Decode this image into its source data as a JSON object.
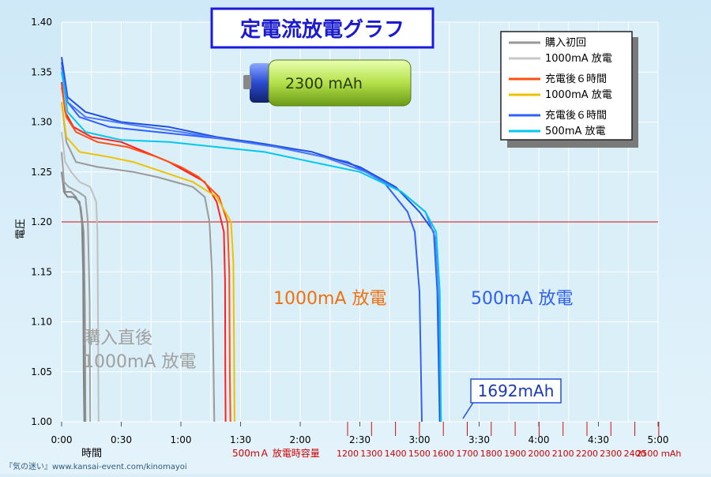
{
  "chart_data": {
    "type": "line",
    "title": "定電流放電グラフ",
    "xlabel": "時間",
    "ylabel": "電圧",
    "x_unit": "hours",
    "xlim": [
      0,
      5
    ],
    "ylim": [
      1.0,
      1.4
    ],
    "grid": true,
    "reference_line": 1.2,
    "x_ticks": [
      "0:00",
      "0:30",
      "1:00",
      "1:30",
      "2:00",
      "2:30",
      "3:00",
      "3:30",
      "4:00",
      "4:30",
      "5:00"
    ],
    "y_ticks": [
      "1.00",
      "1.05",
      "1.10",
      "1.15",
      "1.20",
      "1.25",
      "1.30",
      "1.35",
      "1.40"
    ],
    "capacity_axis": {
      "label": "500ｍＡ 放電時容量",
      "ticks": [
        "1200",
        "1300",
        "1400",
        "1500",
        "1600",
        "1700",
        "1800",
        "1900",
        "2000",
        "2100",
        "2200",
        "2300",
        "2400",
        "2500 ｍAh"
      ]
    },
    "legend": {
      "placement": "top-right",
      "groups": [
        {
          "lines": [
            "購入初回",
            "1000mA 放電"
          ],
          "colors": [
            "#999999",
            "#c8c8c8"
          ]
        },
        {
          "lines": [
            "充電後６時間",
            "1000mA 放電"
          ],
          "colors": [
            "#ff5010",
            "#f0c000"
          ]
        },
        {
          "lines": [
            "充電後６時間",
            "500mA 放電"
          ],
          "colors": [
            "#3060ff",
            "#00c8f0"
          ]
        }
      ]
    },
    "annotations": {
      "group_new": [
        "購入直後",
        "1000mA 放電"
      ],
      "group_1000": "1000mA 放電",
      "group_500": "500mA 放電",
      "callout": "1692mAh"
    },
    "battery_label": "2300 mAh",
    "series": [
      {
        "color": "#808080",
        "points": [
          [
            0,
            1.25
          ],
          [
            0.02,
            1.23
          ],
          [
            0.05,
            1.225
          ],
          [
            0.1,
            1.225
          ],
          [
            0.15,
            1.22
          ],
          [
            0.17,
            1.2
          ],
          [
            0.18,
            1.15
          ],
          [
            0.185,
            1.05
          ],
          [
            0.19,
            1.0
          ]
        ]
      },
      {
        "color": "#909090",
        "points": [
          [
            0,
            1.25
          ],
          [
            0.03,
            1.23
          ],
          [
            0.08,
            1.23
          ],
          [
            0.12,
            1.225
          ],
          [
            0.16,
            1.215
          ],
          [
            0.185,
            1.19
          ],
          [
            0.195,
            1.12
          ],
          [
            0.2,
            1.0
          ]
        ]
      },
      {
        "color": "#a0a0a0",
        "points": [
          [
            0,
            1.27
          ],
          [
            0.02,
            1.24
          ],
          [
            0.06,
            1.235
          ],
          [
            0.14,
            1.23
          ],
          [
            0.2,
            1.225
          ],
          [
            0.22,
            1.2
          ],
          [
            0.235,
            1.12
          ],
          [
            0.24,
            1.0
          ]
        ]
      },
      {
        "color": "#c0c0c0",
        "points": [
          [
            0,
            1.29
          ],
          [
            0.03,
            1.26
          ],
          [
            0.08,
            1.25
          ],
          [
            0.15,
            1.24
          ],
          [
            0.24,
            1.235
          ],
          [
            0.29,
            1.22
          ],
          [
            0.3,
            1.19
          ],
          [
            0.305,
            1.1
          ],
          [
            0.31,
            1.0
          ]
        ]
      },
      {
        "color": "#999999",
        "points": [
          [
            0,
            1.32
          ],
          [
            0.04,
            1.28
          ],
          [
            0.12,
            1.26
          ],
          [
            0.3,
            1.255
          ],
          [
            0.6,
            1.25
          ],
          [
            0.8,
            1.245
          ],
          [
            0.95,
            1.24
          ],
          [
            1.1,
            1.235
          ],
          [
            1.2,
            1.225
          ],
          [
            1.24,
            1.2
          ],
          [
            1.26,
            1.15
          ],
          [
            1.27,
            1.08
          ],
          [
            1.28,
            1.0
          ]
        ]
      },
      {
        "color": "#ff2020",
        "points": [
          [
            0,
            1.34
          ],
          [
            0.03,
            1.31
          ],
          [
            0.1,
            1.295
          ],
          [
            0.25,
            1.285
          ],
          [
            0.5,
            1.28
          ],
          [
            0.7,
            1.27
          ],
          [
            0.9,
            1.26
          ],
          [
            1.05,
            1.25
          ],
          [
            1.2,
            1.24
          ],
          [
            1.3,
            1.22
          ],
          [
            1.36,
            1.19
          ],
          [
            1.37,
            1.14
          ],
          [
            1.372,
            1.05
          ],
          [
            1.375,
            1.0
          ]
        ]
      },
      {
        "color": "#ff5010",
        "points": [
          [
            0,
            1.335
          ],
          [
            0.04,
            1.305
          ],
          [
            0.12,
            1.29
          ],
          [
            0.3,
            1.28
          ],
          [
            0.55,
            1.275
          ],
          [
            0.8,
            1.265
          ],
          [
            1.0,
            1.255
          ],
          [
            1.15,
            1.245
          ],
          [
            1.32,
            1.225
          ],
          [
            1.39,
            1.2
          ],
          [
            1.405,
            1.15
          ],
          [
            1.41,
            1.05
          ],
          [
            1.415,
            1.0
          ]
        ]
      },
      {
        "color": "#f0c000",
        "points": [
          [
            0,
            1.32
          ],
          [
            0.04,
            1.285
          ],
          [
            0.15,
            1.27
          ],
          [
            0.4,
            1.265
          ],
          [
            0.6,
            1.26
          ],
          [
            0.85,
            1.25
          ],
          [
            1.1,
            1.24
          ],
          [
            1.3,
            1.225
          ],
          [
            1.42,
            1.2
          ],
          [
            1.44,
            1.16
          ],
          [
            1.445,
            1.08
          ],
          [
            1.45,
            1.0
          ]
        ]
      },
      {
        "color": "#3060ff",
        "points": [
          [
            0,
            1.36
          ],
          [
            0.05,
            1.32
          ],
          [
            0.15,
            1.305
          ],
          [
            0.4,
            1.295
          ],
          [
            0.8,
            1.29
          ],
          [
            1.2,
            1.285
          ],
          [
            1.6,
            1.28
          ],
          [
            2.0,
            1.27
          ],
          [
            2.4,
            1.26
          ],
          [
            2.7,
            1.24
          ],
          [
            2.9,
            1.21
          ],
          [
            2.96,
            1.19
          ],
          [
            3.0,
            1.13
          ],
          [
            3.02,
            1.0
          ]
        ]
      },
      {
        "color": "#2050e0",
        "points": [
          [
            0,
            1.365
          ],
          [
            0.05,
            1.325
          ],
          [
            0.2,
            1.31
          ],
          [
            0.5,
            1.3
          ],
          [
            0.9,
            1.295
          ],
          [
            1.3,
            1.285
          ],
          [
            1.7,
            1.278
          ],
          [
            2.1,
            1.27
          ],
          [
            2.5,
            1.255
          ],
          [
            2.8,
            1.235
          ],
          [
            3.0,
            1.21
          ],
          [
            3.12,
            1.19
          ],
          [
            3.15,
            1.13
          ],
          [
            3.17,
            1.0
          ]
        ]
      },
      {
        "color": "#4a78ff",
        "points": [
          [
            0,
            1.355
          ],
          [
            0.05,
            1.32
          ],
          [
            0.2,
            1.305
          ],
          [
            0.6,
            1.297
          ],
          [
            1.0,
            1.29
          ],
          [
            1.4,
            1.282
          ],
          [
            1.8,
            1.275
          ],
          [
            2.2,
            1.265
          ],
          [
            2.55,
            1.25
          ],
          [
            2.85,
            1.23
          ],
          [
            3.05,
            1.21
          ],
          [
            3.13,
            1.185
          ],
          [
            3.16,
            1.12
          ],
          [
            3.18,
            1.0
          ]
        ]
      },
      {
        "color": "#00c8f0",
        "points": [
          [
            0,
            1.35
          ],
          [
            0.05,
            1.31
          ],
          [
            0.2,
            1.29
          ],
          [
            0.5,
            1.282
          ],
          [
            0.9,
            1.28
          ],
          [
            1.3,
            1.275
          ],
          [
            1.7,
            1.27
          ],
          [
            2.1,
            1.26
          ],
          [
            2.5,
            1.25
          ],
          [
            2.85,
            1.23
          ],
          [
            3.05,
            1.21
          ],
          [
            3.14,
            1.19
          ],
          [
            3.17,
            1.13
          ],
          [
            3.18,
            1.0
          ]
        ]
      }
    ]
  }
}
